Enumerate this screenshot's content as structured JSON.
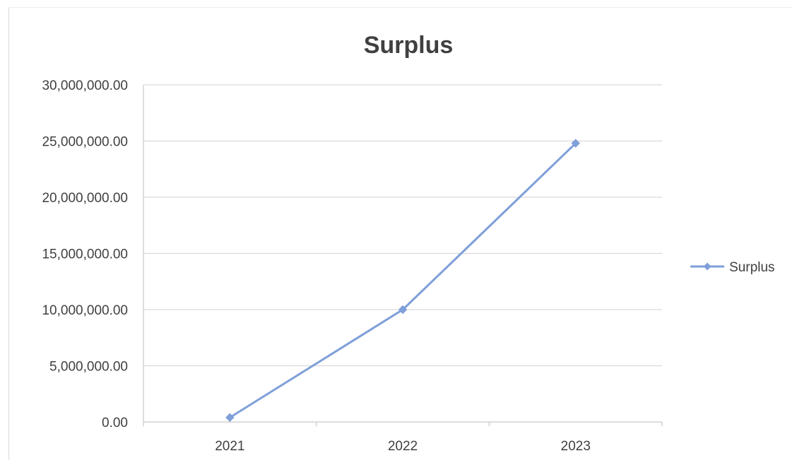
{
  "chart_data": {
    "type": "line",
    "title": "Surplus",
    "categories": [
      "2021",
      "2022",
      "2023"
    ],
    "series": [
      {
        "name": "Surplus",
        "values": [
          400000,
          10000000,
          24800000
        ],
        "color": "#7f9fd9"
      }
    ],
    "ylim": [
      0,
      30000000
    ],
    "yticks": [
      "0.00",
      "5,000,000.00",
      "10,000,000.00",
      "15,000,000.00",
      "20,000,000.00",
      "25,000,000.00",
      "30,000,000.00"
    ],
    "grid": true,
    "legend_position": "right"
  }
}
